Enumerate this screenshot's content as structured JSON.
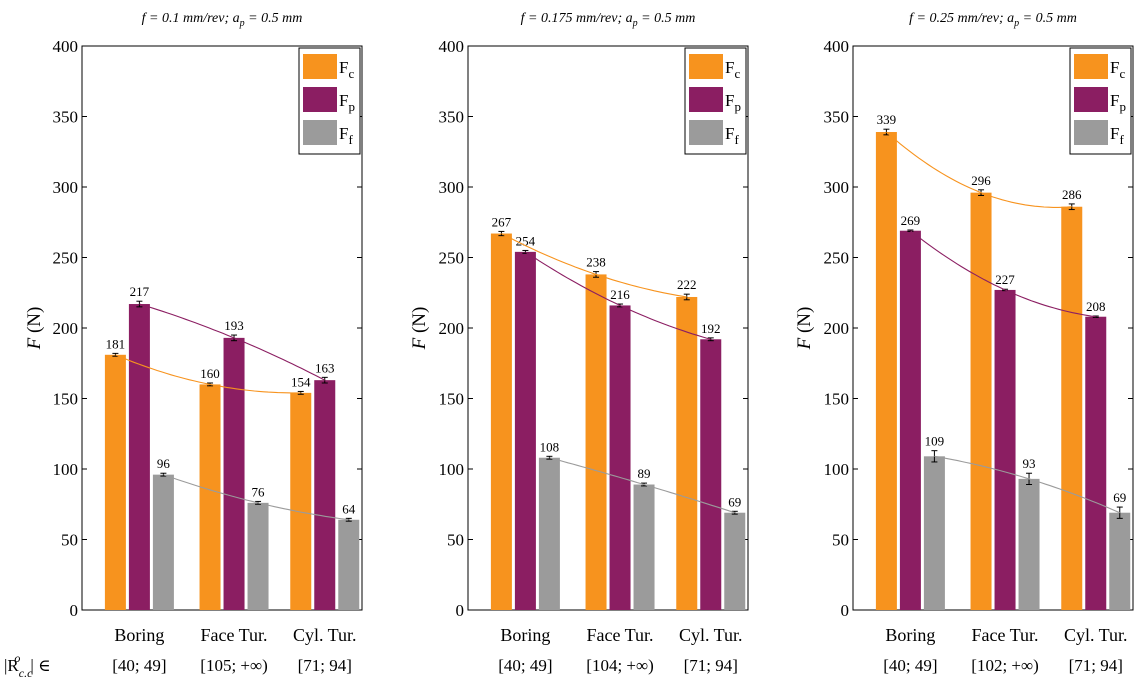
{
  "colors": {
    "Fc": "#f7931e",
    "Fp": "#8b1e62",
    "Ff": "#9b9b9b"
  },
  "chart_data": [
    {
      "type": "bar",
      "title_parts": [
        "f = 0.1 mm/rev; a",
        "p",
        "= 0.5 mm"
      ],
      "ylabel_parts": [
        "F",
        " (N)"
      ],
      "ylim": [
        0,
        400
      ],
      "yticks": [
        "0",
        "50",
        "100",
        "150",
        "200",
        "250",
        "300",
        "350",
        "400"
      ],
      "categories": [
        "Boring",
        "Face Tur.",
        "Cyl. Tur."
      ],
      "range_prefix": [
        "|R",
        "c.c",
        "o",
        "| ∈ "
      ],
      "ranges": [
        "[40; 49]",
        "[105; +∞)",
        "[71; 94]"
      ],
      "legend_placement": "top-right",
      "series": [
        {
          "name": "F",
          "sub": "c",
          "values": [
            181,
            160,
            154
          ],
          "errors": [
            1,
            1,
            1
          ]
        },
        {
          "name": "F",
          "sub": "p",
          "values": [
            217,
            193,
            163
          ],
          "errors": [
            2,
            2,
            2
          ]
        },
        {
          "name": "F",
          "sub": "f",
          "values": [
            96,
            76,
            64
          ],
          "errors": [
            1,
            1,
            1
          ]
        }
      ]
    },
    {
      "type": "bar",
      "title_parts": [
        "f = 0.175 mm/rev; a",
        "p",
        "= 0.5 mm"
      ],
      "ylabel_parts": [
        "F",
        " (N)"
      ],
      "ylim": [
        0,
        400
      ],
      "yticks": [
        "0",
        "50",
        "100",
        "150",
        "200",
        "250",
        "300",
        "350",
        "400"
      ],
      "categories": [
        "Boring",
        "Face Tur.",
        "Cyl. Tur."
      ],
      "ranges": [
        "[40; 49]",
        "[104; +∞)",
        "[71; 94]"
      ],
      "legend_placement": "top-right",
      "series": [
        {
          "name": "F",
          "sub": "c",
          "values": [
            267,
            238,
            222
          ],
          "errors": [
            1.5,
            2,
            2
          ]
        },
        {
          "name": "F",
          "sub": "p",
          "values": [
            254,
            216,
            192
          ],
          "errors": [
            1,
            1,
            1
          ]
        },
        {
          "name": "F",
          "sub": "f",
          "values": [
            108,
            89,
            69
          ],
          "errors": [
            1,
            1,
            1
          ]
        }
      ]
    },
    {
      "type": "bar",
      "title_parts": [
        "f = 0.25 mm/rev; a",
        "p",
        "= 0.5 mm"
      ],
      "ylabel_parts": [
        "F",
        " (N)"
      ],
      "ylim": [
        0,
        400
      ],
      "yticks": [
        "0",
        "50",
        "100",
        "150",
        "200",
        "250",
        "300",
        "350",
        "400"
      ],
      "categories": [
        "Boring",
        "Face Tur.",
        "Cyl. Tur."
      ],
      "ranges": [
        "[40; 49]",
        "[102; +∞)",
        "[71; 94]"
      ],
      "legend_placement": "top-right",
      "series": [
        {
          "name": "F",
          "sub": "c",
          "values": [
            339,
            296,
            286
          ],
          "errors": [
            2,
            2,
            2
          ]
        },
        {
          "name": "F",
          "sub": "p",
          "values": [
            269,
            227,
            208
          ],
          "errors": [
            0.5,
            0.5,
            0.5
          ]
        },
        {
          "name": "F",
          "sub": "f",
          "values": [
            109,
            93,
            69
          ],
          "errors": [
            4,
            4,
            4
          ]
        }
      ]
    }
  ]
}
